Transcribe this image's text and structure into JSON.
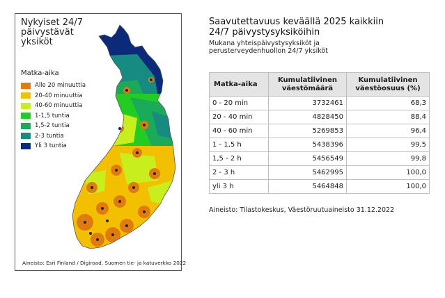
{
  "map": {
    "title": "Nykyiset 24/7\npäivystävät\nyksiköt",
    "legend": {
      "title": "Matka-aika",
      "items": [
        {
          "label": "Alle 20 minuuttia",
          "color": "#e07b10"
        },
        {
          "label": "20-40 minuuttia",
          "color": "#f2c000"
        },
        {
          "label": "40-60 minuuttia",
          "color": "#c8ee1e"
        },
        {
          "label": "1-1,5 tuntia",
          "color": "#22cc22"
        },
        {
          "label": "1,5-2 tuntia",
          "color": "#1aaa5a"
        },
        {
          "label": "2-3 tuntia",
          "color": "#178a82"
        },
        {
          "label": "Yli 3 tuntia",
          "color": "#0c2a7a"
        }
      ]
    },
    "source": "Aineisto: Esri Finland / Digiroad, Suomen tie- ja katuverkko 2022"
  },
  "heading": {
    "line1": "Saavutettavuus keväällä 2025 kaikkiin",
    "line2": "24/7 päivystysyksiköihin"
  },
  "subheading": {
    "line1": "Mukana yhteispäivystysyksiköt ja",
    "line2": "perusterveydenhuollon 24/7 yksiköt"
  },
  "table": {
    "headers": [
      "Matka-aika",
      "Kumulatiivinen väestömäärä",
      "Kumulatiivinen väestöosuus (%)"
    ],
    "rows": [
      [
        "0 - 20 min",
        "3732461",
        "68,3"
      ],
      [
        "20 - 40 min",
        "4828450",
        "88,4"
      ],
      [
        "40 - 60 min",
        "5269853",
        "96,4"
      ],
      [
        "1 - 1,5 h",
        "5438396",
        "99,5"
      ],
      [
        "1,5 - 2 h",
        "5456549",
        "99,8"
      ],
      [
        "2 - 3 h",
        "5462995",
        "100,0"
      ],
      [
        "yli 3 h",
        "5464848",
        "100,0"
      ]
    ]
  },
  "source": "Aineisto: Tilastokeskus, Väestöruutuaineisto 31.12.2022"
}
